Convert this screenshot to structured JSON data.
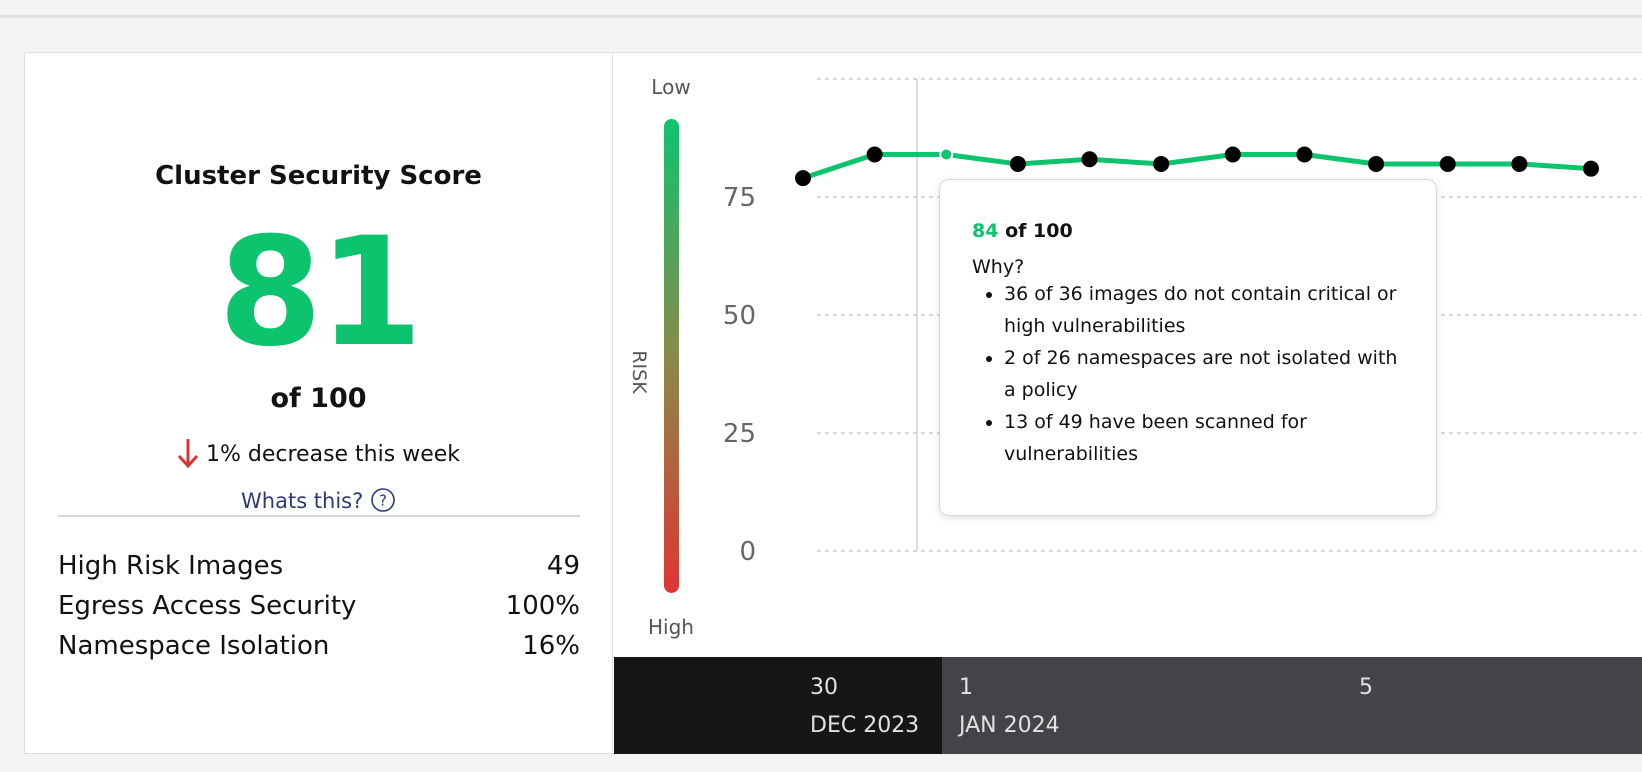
{
  "panel": {
    "title": "Cluster Security Score",
    "score": "81",
    "score_suffix": "of 100",
    "change": "1% decrease this week",
    "help_link": "Whats this?",
    "metrics": [
      {
        "label": "High Risk Images",
        "value": "49"
      },
      {
        "label": "Egress Access Security",
        "value": "100%"
      },
      {
        "label": "Namespace Isolation",
        "value": "16%"
      }
    ]
  },
  "chart_data": {
    "type": "line",
    "y_axis_top": "Low",
    "y_axis_bottom": "High",
    "y_axis_label": "RISK",
    "categories": [
      null,
      null,
      null,
      null,
      null,
      null,
      null,
      null,
      null,
      null,
      null,
      null
    ],
    "series": [
      {
        "color": "#0dc46e",
        "values": [
          79,
          84,
          84,
          82,
          83,
          82,
          84,
          84,
          82,
          82,
          82,
          81
        ]
      }
    ],
    "ylim": [
      0,
      100
    ],
    "yticks": [
      0,
      25,
      50,
      75
    ],
    "grid": true,
    "x_labels": [
      {
        "day": "30",
        "month": "DEC 2023"
      },
      {
        "day": "1",
        "month": "JAN 2024"
      },
      {
        "day": "5"
      }
    ]
  },
  "tooltip": {
    "score": "84",
    "score_suffix": "of 100",
    "heading": "Why?",
    "reasons": [
      "36 of 36 images do not contain critical or high vulnerabilities",
      "2 of 26 namespaces are not isolated with a policy",
      "13 of 49 have been scanned for vulnerabilities"
    ]
  }
}
